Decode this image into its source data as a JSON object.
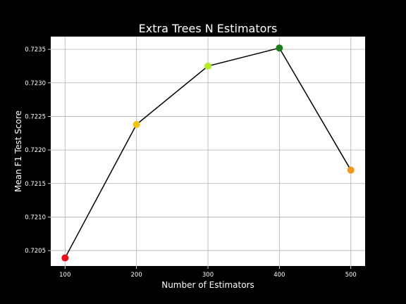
{
  "chart_data": {
    "type": "line",
    "title": "Extra Trees N Estimators",
    "xlabel": "Number of Estimators",
    "ylabel": "Mean F1 Test Score",
    "x": [
      100,
      200,
      300,
      400,
      500
    ],
    "series": [
      {
        "values": [
          0.72039,
          0.72238,
          0.72325,
          0.72352,
          0.7217
        ],
        "line_color": "#000000",
        "marker_colors": [
          "#e8101a",
          "#f2c40c",
          "#b3ee22",
          "#1a7d1a",
          "#f59512"
        ]
      }
    ],
    "xlim": [
      80,
      520
    ],
    "ylim": [
      0.72027,
      0.72369
    ],
    "xticks": [
      100,
      200,
      300,
      400,
      500
    ],
    "yticks": [
      0.7205,
      0.721,
      0.7215,
      0.722,
      0.7225,
      0.723,
      0.7235
    ],
    "ytick_labels": [
      "0.7205",
      "0.7210",
      "0.7215",
      "0.7220",
      "0.7225",
      "0.7230",
      "0.7235"
    ],
    "grid": true,
    "colors": {
      "background": "#000000",
      "plot_background": "#ffffff",
      "grid": "#b0b0b0",
      "text": "#ffffff"
    }
  }
}
